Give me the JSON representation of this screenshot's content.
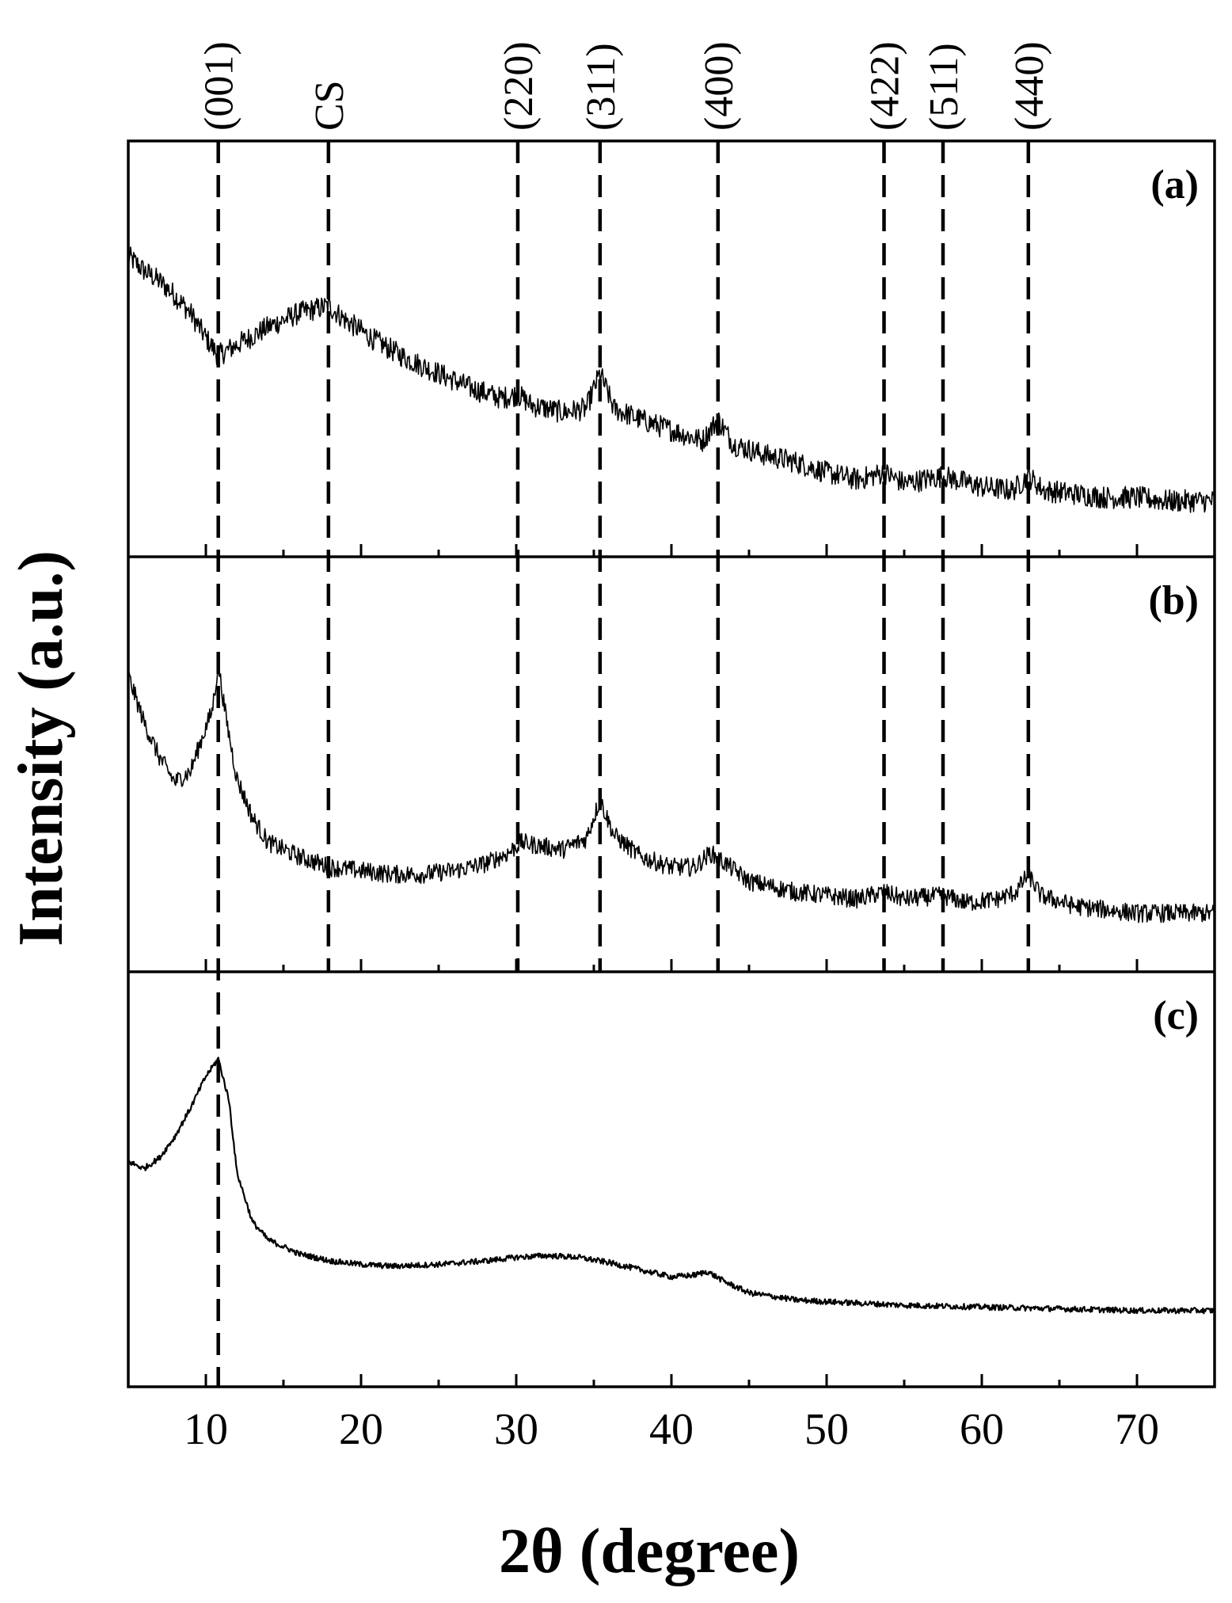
{
  "chart_data": {
    "type": "line",
    "xlabel": "2θ (degree)",
    "ylabel": "Intensity (a.u.)",
    "xlim": [
      5,
      75
    ],
    "ylim": [
      0,
      100
    ],
    "x_major_ticks": [
      10,
      20,
      30,
      40,
      50,
      60,
      70
    ],
    "x_minor_ticks": [
      15,
      25,
      35,
      45,
      55,
      65
    ],
    "y_tick_labels": "none",
    "grid": false,
    "legend": "none",
    "reference_lines": [
      {
        "label": "(001)",
        "x": 10.8
      },
      {
        "label": "CS",
        "x": 17.9
      },
      {
        "label": "(220)",
        "x": 30.1
      },
      {
        "label": "(311)",
        "x": 35.4
      },
      {
        "label": "(400)",
        "x": 43.0
      },
      {
        "label": "(422)",
        "x": 53.7
      },
      {
        "label": "(511)",
        "x": 57.5
      },
      {
        "label": "(440)",
        "x": 63.0
      }
    ],
    "panels": [
      {
        "label": "(a)",
        "noise_amplitude": 3.2,
        "x": [
          5,
          6,
          7,
          8,
          9,
          10,
          10.8,
          12,
          14,
          16,
          17.9,
          19,
          21,
          23,
          25,
          27,
          29,
          30.1,
          31,
          33,
          34.5,
          35.4,
          36.3,
          38,
          40,
          42,
          43.0,
          44,
          46,
          48,
          50,
          52,
          53.7,
          55,
          57.5,
          60,
          62,
          63.0,
          64,
          66,
          68,
          70,
          72,
          75
        ],
        "y": [
          76,
          72,
          69,
          65,
          60,
          53,
          48,
          51,
          56,
          60,
          62,
          58,
          52,
          47,
          43,
          39,
          36,
          37,
          34,
          32,
          33,
          43,
          33,
          30,
          27,
          24,
          30,
          23,
          20,
          18,
          15,
          13,
          15,
          12,
          14,
          11,
          10,
          14,
          10,
          9,
          8,
          8,
          7,
          7
        ]
      },
      {
        "label": "(b)",
        "noise_amplitude": 2.6,
        "x": [
          5,
          6,
          7,
          8,
          9,
          9.8,
          10.4,
          10.8,
          11.3,
          12,
          13,
          14,
          16,
          18,
          20,
          22,
          24,
          26,
          28,
          29.5,
          30.3,
          31.5,
          33,
          34.5,
          35.4,
          36.3,
          38,
          40,
          41.5,
          42.5,
          43.5,
          45,
          48,
          50,
          52,
          53.7,
          55,
          57.5,
          59,
          61,
          62.2,
          63.0,
          63.8,
          66,
          70,
          75
        ],
        "y": [
          75,
          62,
          52,
          45,
          48,
          58,
          65,
          78,
          63,
          46,
          35,
          28,
          24,
          21,
          20,
          19,
          19,
          20,
          22,
          25,
          28,
          27,
          26,
          29,
          40,
          30,
          24,
          21,
          21,
          25,
          22,
          17,
          14,
          13,
          12,
          14,
          12,
          13,
          11,
          12,
          14,
          19,
          13,
          10,
          8,
          8
        ]
      },
      {
        "label": "(c)",
        "noise_amplitude": 0.8,
        "x": [
          5,
          6,
          7,
          8,
          9,
          10,
          10.8,
          11.5,
          12,
          13,
          14,
          16,
          18,
          20,
          22,
          25,
          28,
          30,
          32,
          34,
          36,
          38,
          40,
          41.5,
          42.3,
          43.5,
          45,
          48,
          50,
          55,
          60,
          65,
          70,
          75
        ],
        "y": [
          55,
          53,
          56,
          62,
          70,
          79,
          84,
          72,
          52,
          38,
          33,
          29,
          27,
          26,
          25.5,
          26,
          27,
          28,
          28.5,
          28,
          26.5,
          24.5,
          22.5,
          23,
          24,
          21,
          18,
          16,
          15.5,
          14.5,
          14,
          13.5,
          13,
          13
        ]
      }
    ]
  }
}
